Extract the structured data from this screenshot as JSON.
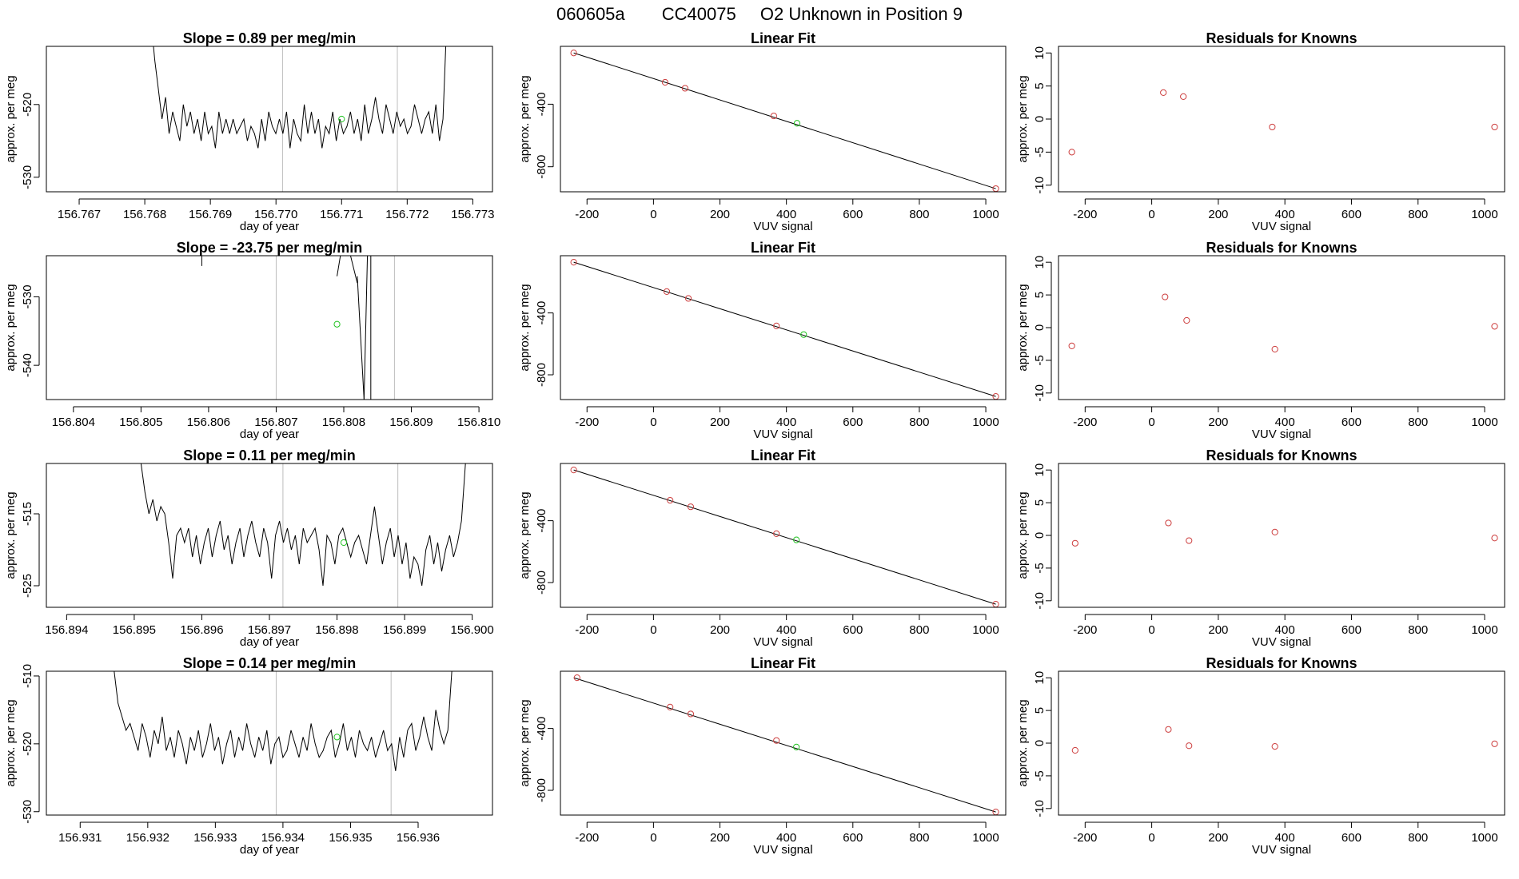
{
  "figure": {
    "run_id": "060605a",
    "cylinder": "CC40075",
    "description": "O2 Unknown in Position  9"
  },
  "chart_data": [
    {
      "type": "line",
      "title": "Slope =  0.89  per meg/min",
      "xlabel": "day of year",
      "ylabel": "approx. per meg",
      "xlim": [
        156.7665,
        156.7733
      ],
      "ylim": [
        -532,
        -512
      ],
      "xticks": [
        156.767,
        156.768,
        156.769,
        156.77,
        156.771,
        156.772,
        156.773
      ],
      "xtick_labels": [
        "156.767",
        "156.768",
        "156.769",
        "156.770",
        "156.771",
        "156.772",
        "156.773"
      ],
      "yticks": [
        -520,
        -530
      ],
      "ytick_labels": [
        "-520",
        "-530"
      ],
      "vlines": [
        156.7701,
        156.77185
      ],
      "line": {
        "x_start": 156.7681,
        "x_end": 156.7726,
        "y": [
          -509,
          -514,
          -518,
          -522,
          -519,
          -524,
          -521,
          -523,
          -525,
          -520,
          -523,
          -521,
          -524,
          -522,
          -525,
          -521,
          -524,
          -523,
          -526,
          -521,
          -524,
          -522,
          -524,
          -522,
          -524,
          -523,
          -522,
          -525,
          -523,
          -524,
          -526,
          -522,
          -525,
          -521,
          -523,
          -524,
          -522,
          -524,
          -521,
          -526,
          -522,
          -524,
          -525,
          -520,
          -524,
          -521,
          -524,
          -522,
          -526,
          -523,
          -524,
          -521,
          -525,
          -522,
          -524,
          -523,
          -521,
          -524,
          -522,
          -525,
          -520,
          -524,
          -522,
          -519,
          -522,
          -524,
          -520,
          -522,
          -524,
          -521,
          -523,
          -522,
          -524,
          -523,
          -520,
          -522,
          -524,
          -522,
          -521,
          -524,
          -520,
          -525,
          -522,
          -509
        ]
      },
      "unknown_point": {
        "x": 156.771,
        "y": -522
      }
    },
    {
      "type": "scatter",
      "title": "Linear Fit",
      "xlabel": "VUV signal",
      "ylabel": "approx. per meg",
      "xlim": [
        -280,
        1060
      ],
      "ylim": [
        -960,
        -30
      ],
      "xticks": [
        -200,
        0,
        200,
        400,
        600,
        800,
        1000
      ],
      "xtick_labels": [
        "-200",
        "0",
        "200",
        "400",
        "600",
        "800",
        "1000"
      ],
      "yticks": [
        -400,
        -800
      ],
      "ytick_labels": [
        "-400",
        "-800"
      ],
      "fit_line": [
        [
          -240,
          -72
        ],
        [
          1030,
          -940
        ]
      ],
      "knowns": [
        [
          -240,
          -72
        ],
        [
          35,
          -260
        ],
        [
          95,
          -298
        ],
        [
          362,
          -475
        ],
        [
          1030,
          -940
        ]
      ],
      "unknown": [
        [
          432,
          -522
        ]
      ]
    },
    {
      "type": "scatter",
      "title": "Residuals for Knowns",
      "xlabel": "VUV signal",
      "ylabel": "approx. per meg",
      "xlim": [
        -280,
        1060
      ],
      "ylim": [
        -11,
        11
      ],
      "xticks": [
        -200,
        0,
        200,
        400,
        600,
        800,
        1000
      ],
      "xtick_labels": [
        "-200",
        "0",
        "200",
        "400",
        "600",
        "800",
        "1000"
      ],
      "yticks": [
        10,
        5,
        0,
        -5,
        -10
      ],
      "ytick_labels": [
        "10",
        "5",
        "0",
        "-5",
        "-10"
      ],
      "knowns": [
        [
          -240,
          -5.0
        ],
        [
          35,
          4.0
        ],
        [
          95,
          3.4
        ],
        [
          362,
          -1.2
        ],
        [
          1030,
          -1.2
        ]
      ]
    },
    {
      "type": "line",
      "title": "Slope =  -23.75  per meg/min",
      "xlabel": "day of year",
      "ylabel": "approx. per meg",
      "xlim": [
        156.8036,
        156.8102
      ],
      "ylim": [
        -545,
        -524
      ],
      "xticks": [
        156.804,
        156.805,
        156.806,
        156.807,
        156.808,
        156.809,
        156.81
      ],
      "xtick_labels": [
        "156.804",
        "156.805",
        "156.806",
        "156.807",
        "156.808",
        "156.809",
        "156.810"
      ],
      "yticks": [
        -530,
        -540
      ],
      "ytick_labels": [
        "-530",
        "-540"
      ],
      "vlines": [
        156.807,
        156.80875
      ],
      "segments": [
        [
          [
            156.8059,
            -524
          ],
          [
            156.8059,
            -525.5
          ]
        ],
        [
          [
            156.80795,
            -524
          ],
          [
            156.8079,
            -527
          ]
        ],
        [
          [
            156.8081,
            -524
          ],
          [
            156.8082,
            -528
          ]
        ],
        [
          [
            156.8082,
            -527
          ],
          [
            156.8083,
            -545
          ]
        ],
        [
          [
            156.8083,
            -545
          ],
          [
            156.80835,
            -524
          ]
        ],
        [
          [
            156.8084,
            -524
          ],
          [
            156.8084,
            -545
          ]
        ]
      ],
      "unknown_point": {
        "x": 156.8079,
        "y": -534
      }
    },
    {
      "type": "scatter",
      "title": "Linear Fit",
      "xlabel": "VUV signal",
      "ylabel": "approx. per meg",
      "xlim": [
        -280,
        1060
      ],
      "ylim": [
        -960,
        -30
      ],
      "xticks": [
        -200,
        0,
        200,
        400,
        600,
        800,
        1000
      ],
      "xtick_labels": [
        "-200",
        "0",
        "200",
        "400",
        "600",
        "800",
        "1000"
      ],
      "yticks": [
        -400,
        -800
      ],
      "ytick_labels": [
        "-400",
        "-800"
      ],
      "fit_line": [
        [
          -240,
          -72
        ],
        [
          1030,
          -940
        ]
      ],
      "knowns": [
        [
          -240,
          -72
        ],
        [
          40,
          -262
        ],
        [
          105,
          -306
        ],
        [
          370,
          -484
        ],
        [
          1030,
          -940
        ]
      ],
      "unknown": [
        [
          452,
          -540
        ]
      ]
    },
    {
      "type": "scatter",
      "title": "Residuals for Knowns",
      "xlabel": "VUV signal",
      "ylabel": "approx. per meg",
      "xlim": [
        -280,
        1060
      ],
      "ylim": [
        -11,
        11
      ],
      "xticks": [
        -200,
        0,
        200,
        400,
        600,
        800,
        1000
      ],
      "xtick_labels": [
        "-200",
        "0",
        "200",
        "400",
        "600",
        "800",
        "1000"
      ],
      "yticks": [
        10,
        5,
        0,
        -5,
        -10
      ],
      "ytick_labels": [
        "10",
        "5",
        "0",
        "-5",
        "-10"
      ],
      "knowns": [
        [
          -240,
          -2.8
        ],
        [
          40,
          4.7
        ],
        [
          105,
          1.1
        ],
        [
          370,
          -3.3
        ],
        [
          1030,
          0.2
        ]
      ]
    },
    {
      "type": "line",
      "title": "Slope =  0.11  per meg/min",
      "xlabel": "day of year",
      "ylabel": "approx. per meg",
      "xlim": [
        156.8937,
        156.9003
      ],
      "ylim": [
        -528,
        -508
      ],
      "xticks": [
        156.894,
        156.895,
        156.896,
        156.897,
        156.898,
        156.899,
        156.9
      ],
      "xtick_labels": [
        "156.894",
        "156.895",
        "156.896",
        "156.897",
        "156.898",
        "156.899",
        "156.900"
      ],
      "yticks": [
        -515,
        -525
      ],
      "ytick_labels": [
        "-515",
        "-525"
      ],
      "vlines": [
        156.8972,
        156.8989
      ],
      "line": {
        "x_start": 156.8951,
        "x_end": 156.8999,
        "y": [
          -508,
          -512,
          -515,
          -513,
          -516,
          -514,
          -515,
          -519,
          -524,
          -518,
          -517,
          -519,
          -517,
          -521,
          -518,
          -522,
          -519,
          -517,
          -521,
          -518,
          -516,
          -520,
          -518,
          -522,
          -519,
          -517,
          -521,
          -518,
          -516,
          -519,
          -521,
          -517,
          -519,
          -524,
          -518,
          -516,
          -519,
          -517,
          -520,
          -518,
          -522,
          -517,
          -519,
          -518,
          -517,
          -520,
          -525,
          -518,
          -519,
          -522,
          -518,
          -517,
          -519,
          -521,
          -519,
          -518,
          -520,
          -522,
          -518,
          -514,
          -518,
          -522,
          -519,
          -517,
          -521,
          -518,
          -522,
          -519,
          -524,
          -521,
          -522,
          -525,
          -520,
          -518,
          -522,
          -519,
          -523,
          -520,
          -518,
          -521,
          -519,
          -516,
          -508
        ]
      },
      "unknown_point": {
        "x": 156.8981,
        "y": -519
      }
    },
    {
      "type": "scatter",
      "title": "Linear Fit",
      "xlabel": "VUV signal",
      "ylabel": "approx. per meg",
      "xlim": [
        -280,
        1060
      ],
      "ylim": [
        -960,
        -30
      ],
      "xticks": [
        -200,
        0,
        200,
        400,
        600,
        800,
        1000
      ],
      "xtick_labels": [
        "-200",
        "0",
        "200",
        "400",
        "600",
        "800",
        "1000"
      ],
      "yticks": [
        -400,
        -800
      ],
      "ytick_labels": [
        "-400",
        "-800"
      ],
      "fit_line": [
        [
          -240,
          -72
        ],
        [
          1030,
          -940
        ]
      ],
      "knowns": [
        [
          -240,
          -72
        ],
        [
          50,
          -268
        ],
        [
          112,
          -310
        ],
        [
          370,
          -484
        ],
        [
          1030,
          -940
        ]
      ],
      "unknown": [
        [
          430,
          -524
        ]
      ]
    },
    {
      "type": "scatter",
      "title": "Residuals for Knowns",
      "xlabel": "VUV signal",
      "ylabel": "approx. per meg",
      "xlim": [
        -280,
        1060
      ],
      "ylim": [
        -11,
        11
      ],
      "xticks": [
        -200,
        0,
        200,
        400,
        600,
        800,
        1000
      ],
      "xtick_labels": [
        "-200",
        "0",
        "200",
        "400",
        "600",
        "800",
        "1000"
      ],
      "yticks": [
        10,
        5,
        0,
        -5,
        -10
      ],
      "ytick_labels": [
        "10",
        "5",
        "0",
        "-5",
        "-10"
      ],
      "knowns": [
        [
          -230,
          -1.2
        ],
        [
          50,
          1.9
        ],
        [
          112,
          -0.8
        ],
        [
          370,
          0.5
        ],
        [
          1030,
          -0.4
        ]
      ]
    },
    {
      "type": "line",
      "title": "Slope =  0.14  per meg/min",
      "xlabel": "day of year",
      "ylabel": "approx. per meg",
      "xlim": [
        156.9305,
        156.9371
      ],
      "ylim": [
        -530.5,
        -509.3
      ],
      "xticks": [
        156.931,
        156.932,
        156.933,
        156.934,
        156.935,
        156.936
      ],
      "xtick_labels": [
        "156.931",
        "156.932",
        "156.933",
        "156.934",
        "156.935",
        "156.936"
      ],
      "yticks": [
        -510,
        -520,
        -530
      ],
      "ytick_labels": [
        "-510",
        "-520",
        "-530"
      ],
      "vlines": [
        156.9339,
        156.9356
      ],
      "line": {
        "x_start": 156.9315,
        "x_end": 156.9365,
        "y": [
          -509,
          -514,
          -516,
          -518,
          -517,
          -519,
          -521,
          -517,
          -519,
          -522,
          -518,
          -520,
          -516,
          -521,
          -519,
          -522,
          -518,
          -520,
          -523,
          -519,
          -521,
          -518,
          -522,
          -520,
          -517,
          -521,
          -519,
          -523,
          -520,
          -518,
          -522,
          -519,
          -521,
          -517,
          -520,
          -522,
          -519,
          -521,
          -518,
          -523,
          -520,
          -519,
          -522,
          -521,
          -518,
          -520,
          -522,
          -519,
          -521,
          -517,
          -520,
          -522,
          -521,
          -519,
          -518,
          -522,
          -520,
          -517,
          -521,
          -519,
          -522,
          -518,
          -520,
          -521,
          -519,
          -522,
          -520,
          -518,
          -521,
          -520,
          -524,
          -519,
          -522,
          -518,
          -517,
          -521,
          -519,
          -516,
          -519,
          -521,
          -515,
          -518,
          -520,
          -518,
          -509
        ]
      },
      "unknown_point": {
        "x": 156.9348,
        "y": -519
      }
    },
    {
      "type": "scatter",
      "title": "Linear Fit",
      "xlabel": "VUV signal",
      "ylabel": "approx. per meg",
      "xlim": [
        -280,
        1060
      ],
      "ylim": [
        -960,
        -30
      ],
      "xticks": [
        -200,
        0,
        200,
        400,
        600,
        800,
        1000
      ],
      "xtick_labels": [
        "-200",
        "0",
        "200",
        "400",
        "600",
        "800",
        "1000"
      ],
      "yticks": [
        -400,
        -800
      ],
      "ytick_labels": [
        "-400",
        "-800"
      ],
      "fit_line": [
        [
          -240,
          -72
        ],
        [
          1030,
          -940
        ]
      ],
      "knowns": [
        [
          -230,
          -72
        ],
        [
          50,
          -262
        ],
        [
          112,
          -306
        ],
        [
          370,
          -478
        ],
        [
          1030,
          -940
        ]
      ],
      "unknown": [
        [
          430,
          -520
        ]
      ]
    },
    {
      "type": "scatter",
      "title": "Residuals for Knowns",
      "xlabel": "VUV signal",
      "ylabel": "approx. per meg",
      "xlim": [
        -280,
        1060
      ],
      "ylim": [
        -11,
        11
      ],
      "xticks": [
        -200,
        0,
        200,
        400,
        600,
        800,
        1000
      ],
      "xtick_labels": [
        "-200",
        "0",
        "200",
        "400",
        "600",
        "800",
        "1000"
      ],
      "yticks": [
        10,
        5,
        0,
        -5,
        -10
      ],
      "ytick_labels": [
        "10",
        "5",
        "0",
        "-5",
        "-10"
      ],
      "knowns": [
        [
          -230,
          -1.1
        ],
        [
          50,
          2.1
        ],
        [
          112,
          -0.4
        ],
        [
          370,
          -0.5
        ],
        [
          1030,
          -0.1
        ]
      ]
    }
  ],
  "colors": {
    "axis": "#000000",
    "trace": "#000000",
    "fit_line": "#000000",
    "known_marker": "#cd3f3f",
    "unknown_marker": "#22c322",
    "vline": "#bebebe"
  }
}
